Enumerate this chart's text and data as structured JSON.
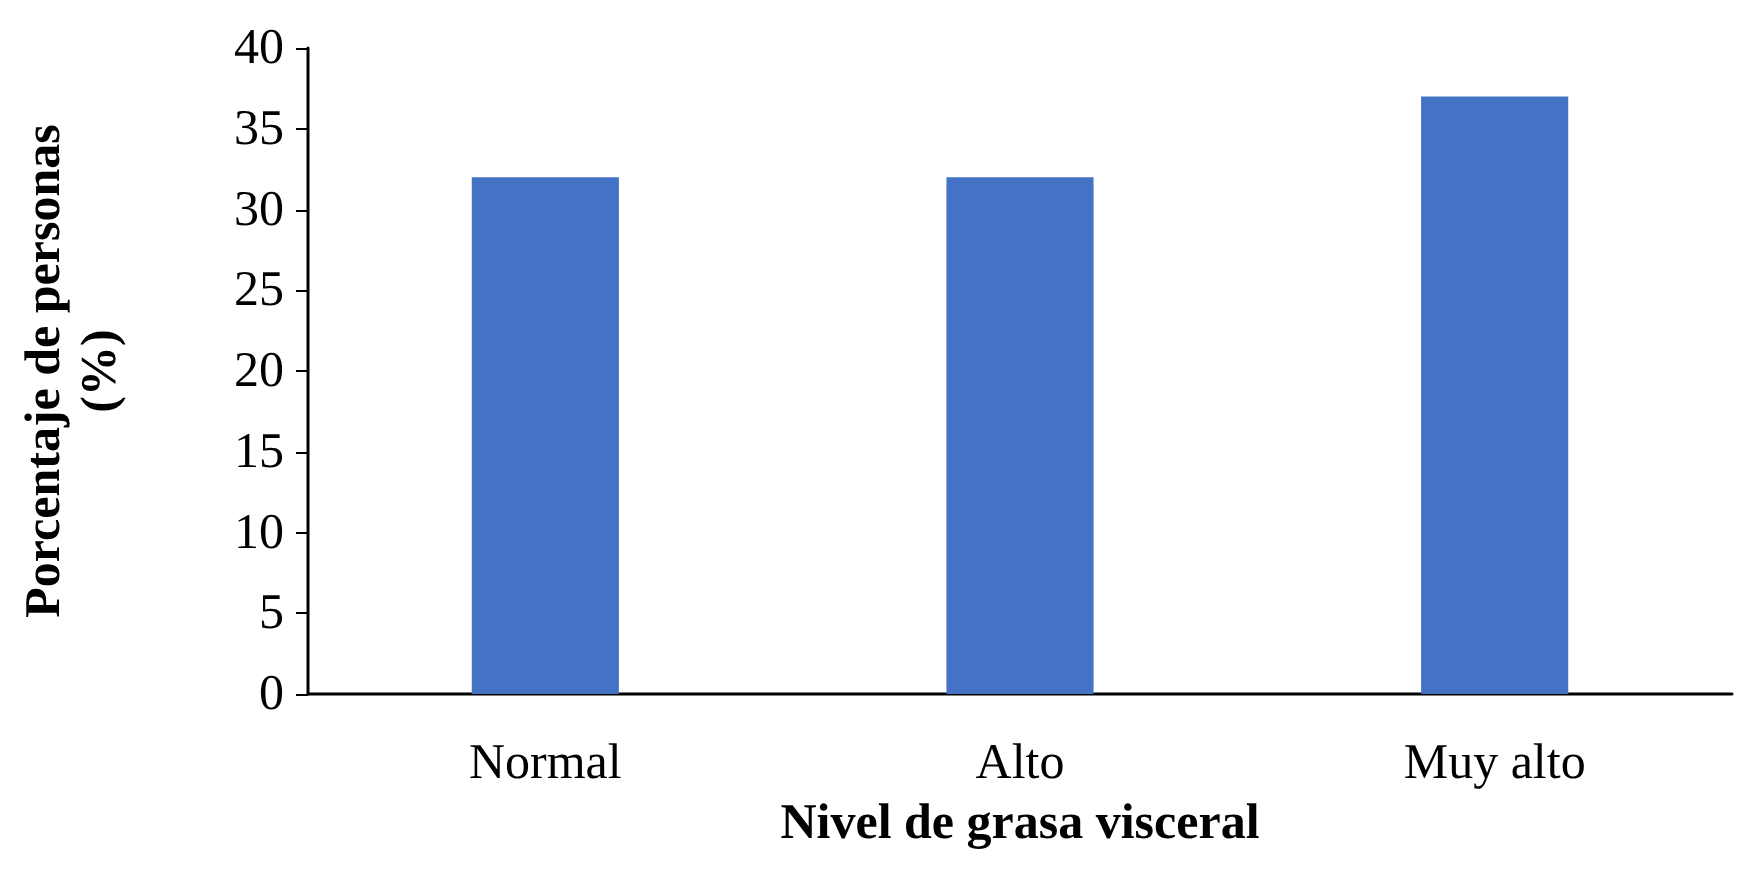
{
  "chart_data": {
    "type": "bar",
    "xlabel": "Nivel de grasa visceral",
    "ylabel": "Porcentaje de personas\n(%)",
    "categories": [
      "Normal",
      "Alto",
      "Muy alto"
    ],
    "values": [
      32,
      32,
      37
    ],
    "color": "#4472c4",
    "ylim": [
      0,
      40
    ],
    "yticks": [
      0,
      5,
      10,
      15,
      20,
      25,
      30,
      35,
      40
    ],
    "grid": false
  }
}
